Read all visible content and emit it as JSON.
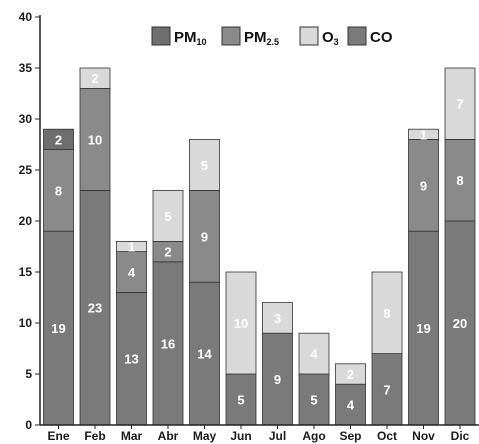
{
  "chart_data": {
    "type": "bar",
    "stacked": true,
    "categories": [
      "Ene",
      "Feb",
      "Mar",
      "Abr",
      "May",
      "Jun",
      "Jul",
      "Ago",
      "Sep",
      "Oct",
      "Nov",
      "Dic"
    ],
    "series": [
      {
        "name": "CO",
        "base": "CO",
        "sub": "",
        "color": "#7a7a7a",
        "values": [
          19,
          23,
          13,
          16,
          14,
          5,
          9,
          5,
          4,
          7,
          19,
          20
        ]
      },
      {
        "name": "PM2.5",
        "base": "PM",
        "sub": "2.5",
        "color": "#8a8a8a",
        "values": [
          8,
          10,
          4,
          2,
          9,
          0,
          0,
          0,
          0,
          0,
          9,
          8
        ]
      },
      {
        "name": "O3",
        "base": "O",
        "sub": "3",
        "color": "#d9d9d9",
        "values": [
          0,
          2,
          1,
          5,
          5,
          10,
          3,
          4,
          2,
          8,
          1,
          7
        ]
      },
      {
        "name": "PM10",
        "base": "PM",
        "sub": "10",
        "color": "#6e6e6e",
        "values": [
          2,
          0,
          0,
          0,
          0,
          0,
          0,
          0,
          0,
          0,
          0,
          0
        ]
      }
    ],
    "legend_order": [
      "PM10",
      "PM2.5",
      "O3",
      "CO"
    ],
    "ylim": [
      0,
      40
    ],
    "yticks": [
      0,
      5,
      10,
      15,
      20,
      25,
      30,
      35,
      40
    ],
    "legend": "top",
    "grid": false
  }
}
